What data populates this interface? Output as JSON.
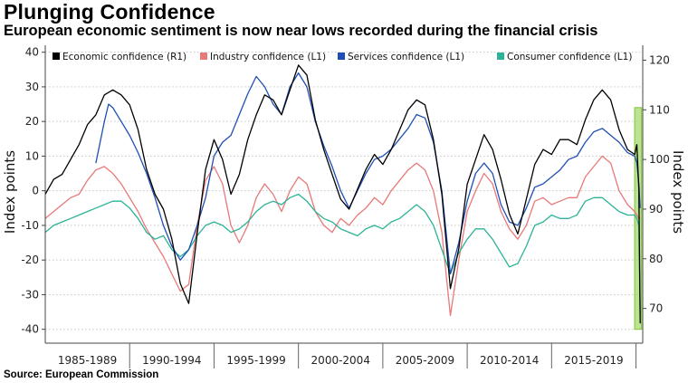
{
  "header": {
    "title": "Plunging Confidence",
    "subtitle": "European economic sentiment is now near lows recorded during the financial crisis"
  },
  "footer": {
    "source": "Source: European Commission"
  },
  "chart_data": {
    "type": "line",
    "title": "Plunging Confidence",
    "subtitle": "European economic sentiment is now near lows recorded during the financial crisis",
    "xlabel": "",
    "ylabel_left": "Index points",
    "ylabel_right": "Index points",
    "ylim_left": [
      -44,
      42
    ],
    "ylim_right": [
      63,
      123
    ],
    "yticks_left": [
      40,
      30,
      20,
      10,
      0,
      -10,
      -20,
      -30,
      -40
    ],
    "yticks_right": [
      120,
      110,
      100,
      90,
      80,
      70
    ],
    "xlim": [
      1985,
      2020.4
    ],
    "x_period_labels": [
      "1985-1989",
      "1990-1994",
      "1995-1999",
      "2000-2004",
      "2005-2009",
      "2010-2014",
      "2015-2019"
    ],
    "gridlines": "horizontal, dotted",
    "legend_position": "top",
    "highlight": {
      "x_range": [
        2019.92,
        2020.33
      ],
      "y_range_left": [
        -40,
        24
      ],
      "color": "#a6d96a"
    },
    "series": [
      {
        "name": "Economic confidence (R1)",
        "axis": "right",
        "color": "#000000",
        "x": [
          1985,
          1985.5,
          1986,
          1986.5,
          1987,
          1987.5,
          1988,
          1988.5,
          1989,
          1989.5,
          1990,
          1990.5,
          1991,
          1991.5,
          1992,
          1992.5,
          1993,
          1993.5,
          1994,
          1994.5,
          1995,
          1995.5,
          1996,
          1996.5,
          1997,
          1997.5,
          1998,
          1998.5,
          1999,
          1999.5,
          2000,
          2000.5,
          2001,
          2001.5,
          2002,
          2002.5,
          2003,
          2003.5,
          2004,
          2004.5,
          2005,
          2005.5,
          2006,
          2006.5,
          2007,
          2007.5,
          2008,
          2008.5,
          2009,
          2009.5,
          2010,
          2010.5,
          2011,
          2011.5,
          2012,
          2012.5,
          2013,
          2013.5,
          2014,
          2014.5,
          2015,
          2015.5,
          2016,
          2016.5,
          2017,
          2017.5,
          2018,
          2018.5,
          2019,
          2019.5,
          2019.92,
          2020.05,
          2020.17,
          2020.25
        ],
        "values": [
          93,
          96,
          97,
          100,
          103,
          107,
          109,
          113,
          114,
          113,
          111,
          106,
          98,
          93,
          90,
          84,
          75,
          71,
          85,
          98,
          104,
          100,
          93,
          97,
          104,
          109,
          113,
          112,
          109,
          114,
          119,
          117,
          108,
          102,
          97,
          92,
          90,
          94,
          98,
          101,
          99,
          102,
          106,
          110,
          112,
          111,
          104,
          93,
          74,
          82,
          95,
          100,
          105,
          102,
          96,
          89,
          85,
          92,
          99,
          102,
          101,
          104,
          104,
          103,
          108,
          112,
          114,
          112,
          106,
          102,
          101,
          103,
          94,
          67
        ]
      },
      {
        "name": "Industry confidence (L1)",
        "axis": "left",
        "color": "#e8797a",
        "x": [
          1985,
          1985.5,
          1986,
          1986.5,
          1987,
          1987.5,
          1988,
          1988.5,
          1989,
          1989.5,
          1990,
          1990.5,
          1991,
          1991.5,
          1992,
          1992.5,
          1993,
          1993.5,
          1994,
          1994.5,
          1995,
          1995.5,
          1996,
          1996.5,
          1997,
          1997.5,
          1998,
          1998.5,
          1999,
          1999.5,
          2000,
          2000.5,
          2001,
          2001.5,
          2002,
          2002.5,
          2003,
          2003.5,
          2004,
          2004.5,
          2005,
          2005.5,
          2006,
          2006.5,
          2007,
          2007.5,
          2008,
          2008.5,
          2009,
          2009.5,
          2010,
          2010.5,
          2011,
          2011.5,
          2012,
          2012.5,
          2013,
          2013.5,
          2014,
          2014.5,
          2015,
          2015.5,
          2016,
          2016.5,
          2017,
          2017.5,
          2018,
          2018.5,
          2019,
          2019.5,
          2019.92,
          2020.05,
          2020.17,
          2020.25
        ],
        "values": [
          -8,
          -6,
          -4,
          -2,
          -1,
          3,
          6,
          7,
          5,
          2,
          -2,
          -6,
          -11,
          -15,
          -19,
          -24,
          -29,
          -27,
          -10,
          3,
          7,
          2,
          -10,
          -15,
          -10,
          -2,
          2,
          -1,
          -6,
          0,
          4,
          2,
          -6,
          -10,
          -12,
          -8,
          -10,
          -7,
          -5,
          -2,
          -4,
          0,
          3,
          6,
          8,
          6,
          0,
          -12,
          -36,
          -20,
          -6,
          0,
          5,
          2,
          -6,
          -11,
          -14,
          -10,
          -3,
          -2,
          -4,
          -3,
          -2,
          -2,
          4,
          7,
          10,
          8,
          0,
          -4,
          -6,
          -7,
          -8,
          -8
        ]
      },
      {
        "name": "Services confidence  (L1)",
        "axis": "left",
        "color": "#1f4fb4",
        "x": [
          1988,
          1988.25,
          1988.5,
          1988.75,
          1989,
          1989.5,
          1990,
          1990.5,
          1991,
          1991.5,
          1992,
          1992.5,
          1993,
          1993.5,
          1994,
          1994.5,
          1995,
          1995.5,
          1996,
          1996.5,
          1997,
          1997.5,
          1998,
          1998.5,
          1999,
          1999.5,
          2000,
          2000.5,
          2001,
          2001.5,
          2002,
          2002.5,
          2003,
          2003.5,
          2004,
          2004.5,
          2005,
          2005.5,
          2006,
          2006.5,
          2007,
          2007.5,
          2008,
          2008.5,
          2009,
          2009.5,
          2010,
          2010.5,
          2011,
          2011.5,
          2012,
          2012.5,
          2013,
          2013.5,
          2014,
          2014.5,
          2015,
          2015.5,
          2016,
          2016.5,
          2017,
          2017.5,
          2018,
          2018.5,
          2019,
          2019.5,
          2019.92,
          2020.05,
          2020.17,
          2020.25
        ],
        "values": [
          8,
          14,
          20,
          25,
          24,
          20,
          16,
          11,
          5,
          -2,
          -10,
          -16,
          -20,
          -17,
          -10,
          -2,
          10,
          14,
          16,
          22,
          28,
          33,
          30,
          25,
          22,
          30,
          34,
          30,
          20,
          13,
          7,
          0,
          -5,
          0,
          5,
          9,
          10,
          12,
          15,
          18,
          22,
          21,
          14,
          0,
          -24,
          -15,
          -3,
          5,
          8,
          5,
          -4,
          -9,
          -10,
          -5,
          1,
          2,
          4,
          6,
          9,
          10,
          14,
          17,
          18,
          16,
          14,
          11,
          10,
          8,
          2,
          -5
        ]
      },
      {
        "name": "Consumer confidence  (L1)",
        "axis": "left",
        "color": "#2bb396",
        "x": [
          1985,
          1985.5,
          1986,
          1986.5,
          1987,
          1987.5,
          1988,
          1988.5,
          1989,
          1989.5,
          1990,
          1990.5,
          1991,
          1991.5,
          1992,
          1992.5,
          1993,
          1993.5,
          1994,
          1994.5,
          1995,
          1995.5,
          1996,
          1996.5,
          1997,
          1997.5,
          1998,
          1998.5,
          1999,
          1999.5,
          2000,
          2000.5,
          2001,
          2001.5,
          2002,
          2002.5,
          2003,
          2003.5,
          2004,
          2004.5,
          2005,
          2005.5,
          2006,
          2006.5,
          2007,
          2007.5,
          2008,
          2008.5,
          2009,
          2009.5,
          2010,
          2010.5,
          2011,
          2011.5,
          2012,
          2012.5,
          2013,
          2013.5,
          2014,
          2014.5,
          2015,
          2015.5,
          2016,
          2016.5,
          2017,
          2017.5,
          2018,
          2018.5,
          2019,
          2019.5,
          2019.92,
          2020.05,
          2020.17,
          2020.25
        ],
        "values": [
          -12,
          -10,
          -9,
          -8,
          -7,
          -6,
          -5,
          -4,
          -3,
          -3,
          -5,
          -8,
          -12,
          -14,
          -13,
          -17,
          -19,
          -17,
          -13,
          -10,
          -9,
          -10,
          -12,
          -11,
          -9,
          -6,
          -4,
          -3,
          -4,
          -2,
          -1,
          -3,
          -6,
          -8,
          -9,
          -11,
          -12,
          -13,
          -11,
          -10,
          -11,
          -9,
          -8,
          -6,
          -4,
          -6,
          -10,
          -17,
          -24,
          -18,
          -14,
          -11,
          -11,
          -14,
          -18,
          -22,
          -21,
          -16,
          -10,
          -9,
          -7,
          -8,
          -8,
          -7,
          -3,
          -2,
          -2,
          -4,
          -6,
          -7,
          -7,
          -8,
          -10,
          -36
        ]
      }
    ]
  }
}
